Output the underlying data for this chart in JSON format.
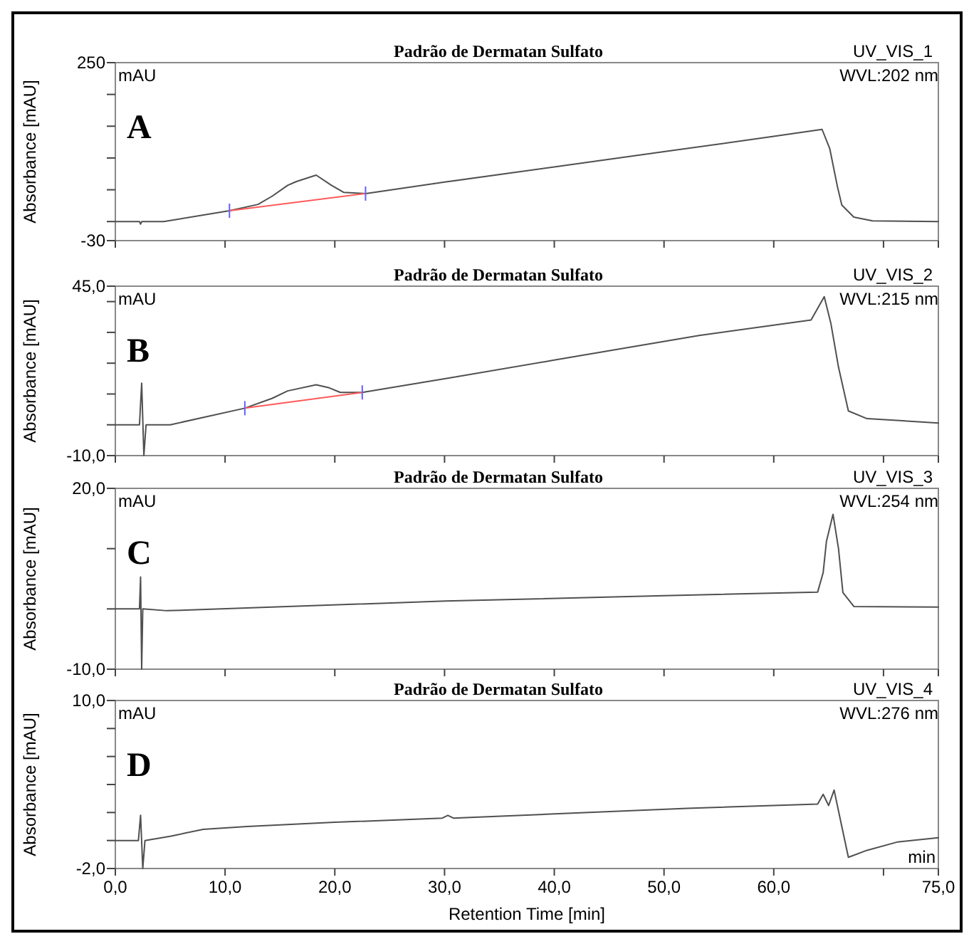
{
  "chart_data": [
    {
      "type": "line",
      "title": "Padrão de Dermatan Sulfato",
      "ylabel": "Absorbance [mAU]",
      "annotations": [
        "mAU",
        "UV_VIS_1",
        "WVL:202 nm",
        "A"
      ],
      "tick_labels": "y",
      "xlim": [
        0,
        75
      ],
      "xticks": [
        {
          "value": 0,
          "label": null
        },
        {
          "value": 10,
          "label": null
        },
        {
          "value": 20,
          "label": null
        },
        {
          "value": 30,
          "label": null
        },
        {
          "value": 40,
          "label": null
        },
        {
          "value": 50,
          "label": null
        },
        {
          "value": 60,
          "label": null
        },
        {
          "value": 70,
          "label": null
        },
        {
          "value": 75,
          "label": null
        }
      ],
      "ylim": [
        -30,
        250
      ],
      "yticks": [
        {
          "value": -30,
          "label": "-30"
        },
        {
          "value": 0,
          "label": null
        },
        {
          "value": 50,
          "label": null
        },
        {
          "value": 100,
          "label": null
        },
        {
          "value": 150,
          "label": null
        },
        {
          "value": 200,
          "label": null
        },
        {
          "value": 250,
          "label": "250"
        }
      ],
      "series": [
        {
          "color": "#505050",
          "x": [
            0,
            2.2,
            2.3,
            2.4,
            4.4,
            10.4,
            13,
            14.3,
            15.7,
            16.5,
            18.3,
            19.7,
            20.8,
            22.8,
            30,
            40,
            50,
            60,
            64.4,
            65.1,
            65.8,
            66.2,
            67.3,
            69,
            75
          ],
          "values": [
            0,
            0,
            -4,
            0,
            0,
            17,
            27,
            40,
            57,
            63,
            73,
            57,
            46,
            44,
            62,
            86,
            110,
            134,
            145,
            115,
            55,
            26,
            7,
            1,
            0
          ]
        },
        {
          "color": "#ff5a5a",
          "x": [
            10.4,
            22.8
          ],
          "values": [
            17,
            44
          ]
        }
      ]
    },
    {
      "type": "line",
      "title": "Padrão de Dermatan Sulfato",
      "ylabel": "Absorbance [mAU]",
      "annotations": [
        "mAU",
        "UV_VIS_2",
        "WVL:215 nm",
        "B"
      ],
      "tick_labels": "y",
      "xlim": [
        0,
        75
      ],
      "xticks": [
        {
          "value": 0,
          "label": null
        },
        {
          "value": 10,
          "label": null
        },
        {
          "value": 20,
          "label": null
        },
        {
          "value": 30,
          "label": null
        },
        {
          "value": 40,
          "label": null
        },
        {
          "value": 50,
          "label": null
        },
        {
          "value": 60,
          "label": null
        },
        {
          "value": 70,
          "label": null
        },
        {
          "value": 75,
          "label": null
        }
      ],
      "ylim": [
        -10,
        45
      ],
      "yticks": [
        {
          "value": -10,
          "label": "-10,0"
        },
        {
          "value": 0,
          "label": null
        },
        {
          "value": 10,
          "label": null
        },
        {
          "value": 20,
          "label": null
        },
        {
          "value": 30,
          "label": null
        },
        {
          "value": 40,
          "label": null
        },
        {
          "value": 45,
          "label": "45,0"
        }
      ],
      "series": [
        {
          "color": "#505050",
          "x": [
            0,
            2.2,
            2.4,
            2.6,
            2.8,
            5.0,
            11.8,
            14.3,
            15.7,
            18.3,
            19.5,
            20.5,
            22.5,
            30.6,
            40,
            53.2,
            63.4,
            64.6,
            65.2,
            65.9,
            66.8,
            68.5,
            75
          ],
          "values": [
            0,
            0,
            13.5,
            -10,
            0,
            0,
            5.4,
            8.6,
            11,
            13,
            12,
            10.5,
            10.5,
            15.3,
            21,
            29,
            34,
            41.6,
            33,
            18.7,
            4.5,
            2,
            0.6
          ]
        },
        {
          "color": "#ff5a5a",
          "x": [
            11.8,
            22.5
          ],
          "values": [
            5.4,
            10.5
          ]
        }
      ]
    },
    {
      "type": "line",
      "title": "Padrão de Dermatan Sulfato",
      "ylabel": "Absorbance [mAU]",
      "annotations": [
        "mAU",
        "UV_VIS_3",
        "WVL:254 nm",
        "C"
      ],
      "tick_labels": "y",
      "xlim": [
        0,
        75
      ],
      "xticks": [
        {
          "value": 0,
          "label": null
        },
        {
          "value": 10,
          "label": null
        },
        {
          "value": 20,
          "label": null
        },
        {
          "value": 30,
          "label": null
        },
        {
          "value": 40,
          "label": null
        },
        {
          "value": 50,
          "label": null
        },
        {
          "value": 60,
          "label": null
        },
        {
          "value": 70,
          "label": null
        },
        {
          "value": 75,
          "label": null
        }
      ],
      "ylim": [
        -10,
        20
      ],
      "yticks": [
        {
          "value": -10,
          "label": "-10,0"
        },
        {
          "value": 0,
          "label": null
        },
        {
          "value": 10,
          "label": null
        },
        {
          "value": 20,
          "label": "20,0"
        }
      ],
      "series": [
        {
          "color": "#505050",
          "x": [
            0,
            2.2,
            2.3,
            2.4,
            2.5,
            4.7,
            30.1,
            50,
            64.0,
            64.5,
            64.8,
            65.4,
            65.9,
            66.3,
            67.3,
            75
          ],
          "values": [
            0,
            0,
            5.3,
            -10,
            0,
            -0.3,
            1.3,
            2.2,
            2.8,
            6,
            11.2,
            15.7,
            10,
            2.7,
            0.4,
            0.3
          ]
        }
      ]
    },
    {
      "type": "line",
      "title": "Padrão de Dermatan Sulfato",
      "xlabel": "Retention Time [min]",
      "ylabel": "Absorbance [mAU]",
      "annotations": [
        "mAU",
        "UV_VIS_4",
        "WVL:276 nm",
        "D",
        "min"
      ],
      "xlim": [
        0,
        75
      ],
      "xticks": [
        {
          "value": 0,
          "label": "0,0"
        },
        {
          "value": 10,
          "label": "10,0"
        },
        {
          "value": 20,
          "label": "20,0"
        },
        {
          "value": 30,
          "label": "30,0"
        },
        {
          "value": 40,
          "label": "40,0"
        },
        {
          "value": 50,
          "label": "50,0"
        },
        {
          "value": 60,
          "label": "60,0"
        },
        {
          "value": 70,
          "label": null
        },
        {
          "value": 75,
          "label": "75,0"
        }
      ],
      "ylim": [
        -2,
        10
      ],
      "yticks": [
        {
          "value": -2,
          "label": "-2,0"
        },
        {
          "value": 0,
          "label": null
        },
        {
          "value": 2,
          "label": null
        },
        {
          "value": 4,
          "label": null
        },
        {
          "value": 6,
          "label": null
        },
        {
          "value": 8,
          "label": null
        },
        {
          "value": 10,
          "label": "10,0"
        }
      ],
      "series": [
        {
          "color": "#505050",
          "x": [
            0,
            2.1,
            2.3,
            2.5,
            2.7,
            5.0,
            8,
            12.0,
            20,
            29.8,
            30.3,
            30.8,
            40,
            52.1,
            64.0,
            64.5,
            65.0,
            65.5,
            66.2,
            66.8,
            68.5,
            71.3,
            75
          ],
          "values": [
            0,
            0,
            1.8,
            -2,
            0,
            0.3,
            0.8,
            1.0,
            1.3,
            1.6,
            1.8,
            1.6,
            1.9,
            2.3,
            2.6,
            3.3,
            2.5,
            3.6,
            1.0,
            -1.2,
            -0.7,
            -0.1,
            0.2
          ]
        }
      ]
    }
  ]
}
